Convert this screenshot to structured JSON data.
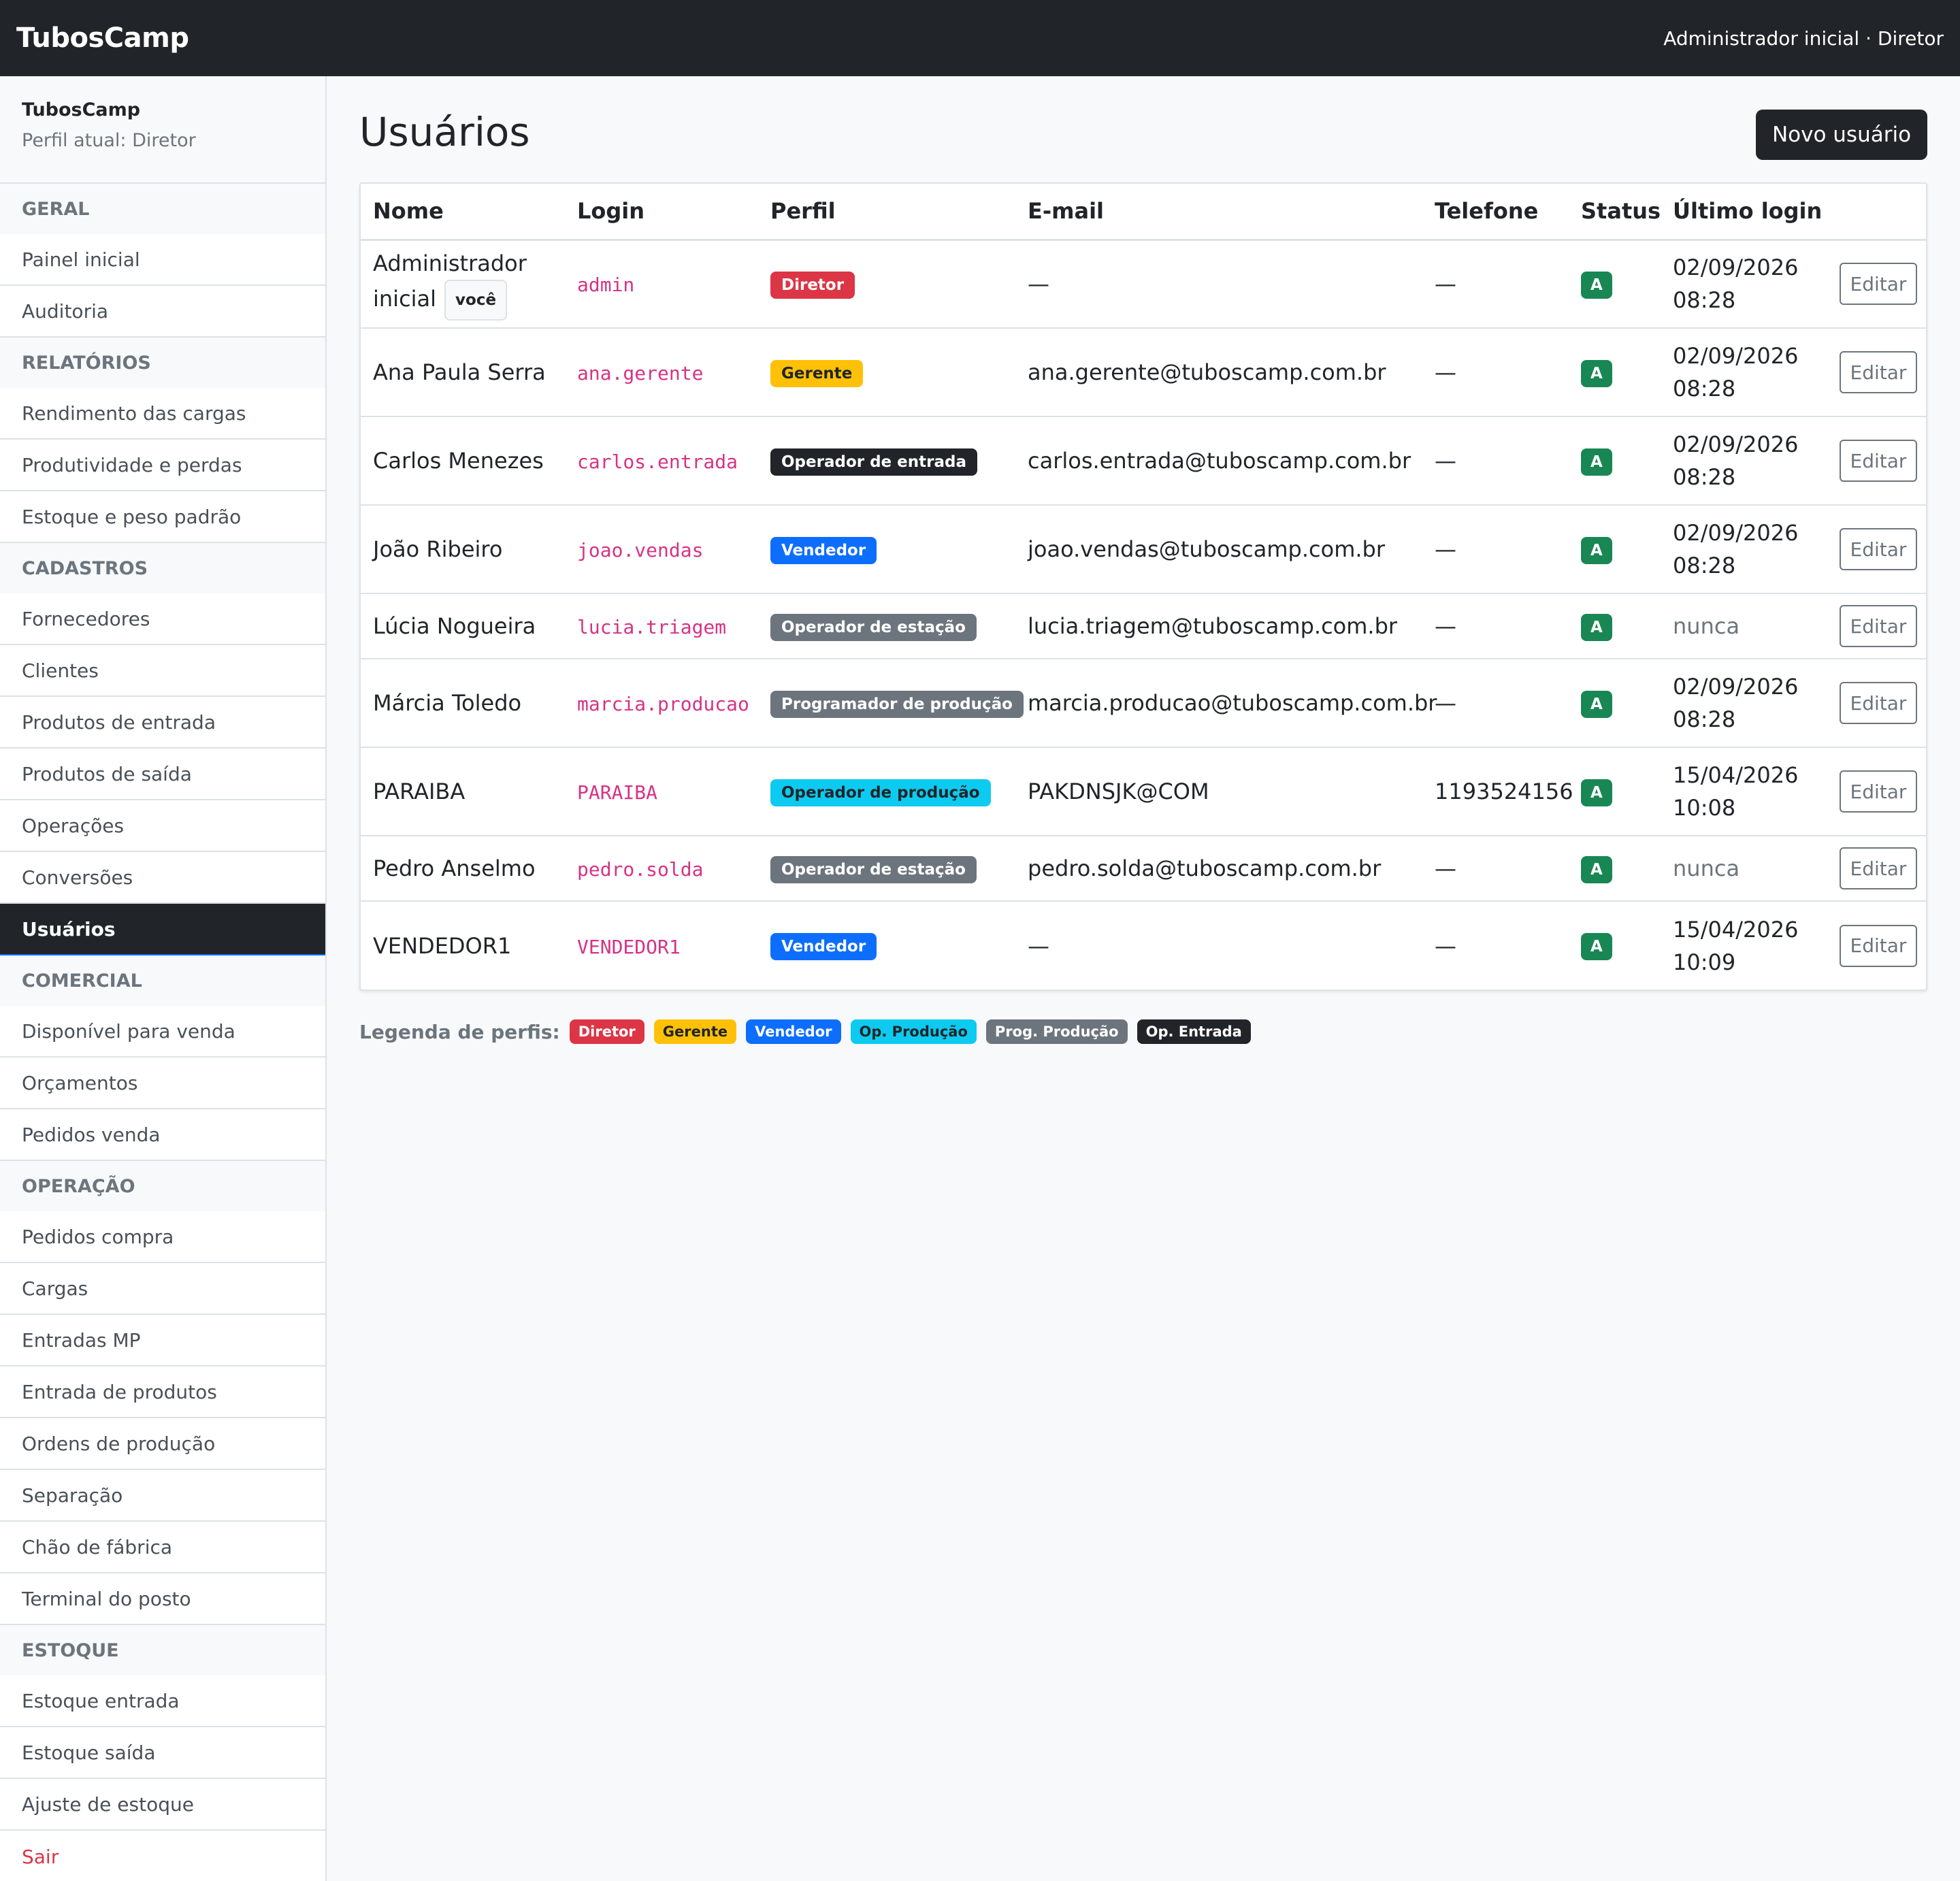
{
  "navbar": {
    "brand": "TubosCamp",
    "user": "Administrador inicial · Diretor"
  },
  "sidebar": {
    "brand": "TubosCamp",
    "role": "Perfil atual: Diretor",
    "sections": [
      {
        "title": "GERAL",
        "items": [
          "Painel inicial",
          "Auditoria"
        ]
      },
      {
        "title": "RELATÓRIOS",
        "items": [
          "Rendimento das cargas",
          "Produtividade e perdas",
          "Estoque e peso padrão"
        ]
      },
      {
        "title": "CADASTROS",
        "items": [
          "Fornecedores",
          "Clientes",
          "Produtos de entrada",
          "Produtos de saída",
          "Operações",
          "Conversões",
          "Usuários"
        ]
      },
      {
        "title": "COMERCIAL",
        "items": [
          "Disponível para venda",
          "Orçamentos",
          "Pedidos venda"
        ]
      },
      {
        "title": "OPERAÇÃO",
        "items": [
          "Pedidos compra",
          "Cargas",
          "Entradas MP",
          "Entrada de produtos",
          "Ordens de produção",
          "Separação",
          "Chão de fábrica",
          "Terminal do posto"
        ]
      },
      {
        "title": "ESTOQUE",
        "items": [
          "Estoque entrada",
          "Estoque saída",
          "Ajuste de estoque"
        ]
      }
    ],
    "active_item": "Usuários",
    "logout": "Sair"
  },
  "main": {
    "title": "Usuários",
    "new_button": "Novo usuário",
    "columns": [
      "Nome",
      "Login",
      "Perfil",
      "E-mail",
      "Telefone",
      "Status",
      "Último login",
      ""
    ],
    "edit_label": "Editar",
    "you_badge": "você",
    "rows": [
      {
        "name": "Administrador inicial",
        "login": "admin",
        "profile": "Diretor",
        "profile_color": "#dc3545",
        "email": "—",
        "phone": "—",
        "status": "A",
        "last_login": "02/09/2026 08:28"
      },
      {
        "name": "Ana Paula Serra",
        "login": "ana.gerente",
        "profile": "Gerente",
        "profile_color": "#ffc107",
        "email": "ana.gerente@tuboscamp.com.br",
        "phone": "—",
        "status": "A",
        "last_login": "02/09/2026 08:28"
      },
      {
        "name": "Carlos Menezes",
        "login": "carlos.entrada",
        "profile": "Operador de entrada",
        "profile_color": "#212529",
        "email": "carlos.entrada@tuboscamp.com.br",
        "phone": "—",
        "status": "A",
        "last_login": "02/09/2026 08:28"
      },
      {
        "name": "João Ribeiro",
        "login": "joao.vendas",
        "profile": "Vendedor",
        "profile_color": "#0d6efd",
        "email": "joao.vendas@tuboscamp.com.br",
        "phone": "—",
        "status": "A",
        "last_login": "02/09/2026 08:28"
      },
      {
        "name": "Lúcia Nogueira",
        "login": "lucia.triagem",
        "profile": "Operador de estação",
        "profile_color": "#6c757d",
        "email": "lucia.triagem@tuboscamp.com.br",
        "phone": "—",
        "status": "A",
        "last_login": "nunca"
      },
      {
        "name": "Márcia Toledo",
        "login": "marcia.producao",
        "profile": "Programador de produção",
        "profile_color": "#6c757d",
        "email": "marcia.producao@tuboscamp.com.br",
        "phone": "—",
        "status": "A",
        "last_login": "02/09/2026 08:28"
      },
      {
        "name": "PARAIBA",
        "login": "PARAIBA",
        "profile": "Operador de produção",
        "profile_color": "#0dcaf0",
        "email": "PAKDNSJK@COM",
        "phone": "1193524156",
        "status": "A",
        "last_login": "15/04/2026 10:08"
      },
      {
        "name": "Pedro Anselmo",
        "login": "pedro.solda",
        "profile": "Operador de estação",
        "profile_color": "#6c757d",
        "email": "pedro.solda@tuboscamp.com.br",
        "phone": "—",
        "status": "A",
        "last_login": "nunca"
      },
      {
        "name": "VENDEDOR1",
        "login": "VENDEDOR1",
        "profile": "Vendedor",
        "profile_color": "#0d6efd",
        "email": "—",
        "phone": "—",
        "status": "A",
        "last_login": "15/04/2026 10:09"
      }
    ]
  },
  "legend": {
    "label": "Legenda de perfis:",
    "items": [
      {
        "label": "Diretor",
        "color": "#dc3545"
      },
      {
        "label": "Gerente",
        "color": "#ffc107"
      },
      {
        "label": "Vendedor",
        "color": "#0d6efd"
      },
      {
        "label": "Op. Produção",
        "color": "#0dcaf0"
      },
      {
        "label": "Prog. Produção",
        "color": "#6c757d"
      },
      {
        "label": "Op. Entrada",
        "color": "#212529"
      }
    ]
  }
}
